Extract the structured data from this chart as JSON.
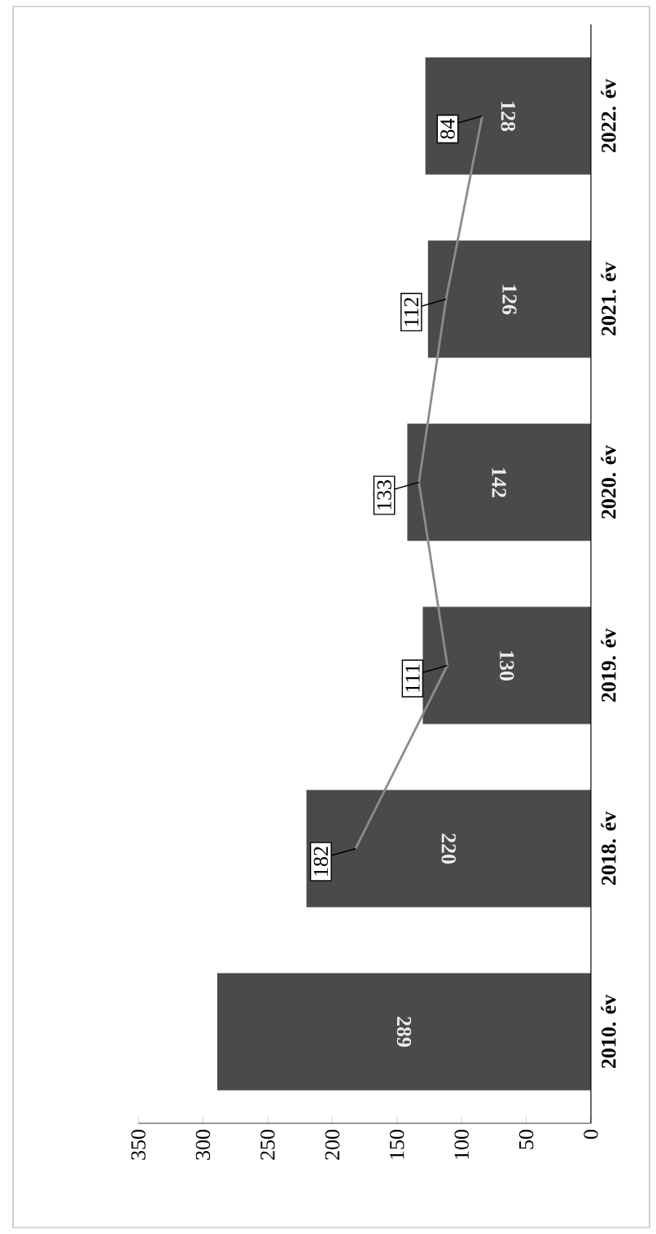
{
  "chart_data": {
    "type": "bar",
    "orientation": "horizontal",
    "categories": [
      "2022. év",
      "2021. év",
      "2020. év",
      "2019. év",
      "2018. év",
      "2010. év"
    ],
    "series": [
      {
        "color": "#4a4a4a",
        "values": [
          128,
          126,
          142,
          130,
          220,
          289
        ]
      },
      {
        "type": "line",
        "color": "#8c8c8c",
        "values": [
          84,
          112,
          133,
          111,
          182,
          null
        ]
      }
    ],
    "xlim": [
      350,
      0
    ],
    "xticks": [
      350,
      300,
      250,
      200,
      150,
      100,
      50,
      0
    ],
    "data_labels": true,
    "marker": "none",
    "line_style": "solid",
    "grid": false
  }
}
